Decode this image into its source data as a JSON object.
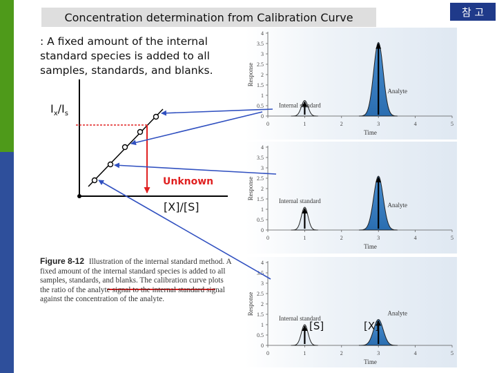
{
  "title": "Concentration determination from Calibration Curve",
  "badge": "참 고",
  "description": ": A fixed amount of the internal standard species is added to all samples, standards, and blanks.",
  "calibration": {
    "ylabel_main": "I",
    "ylabel_sub1": "x",
    "ylabel_mid": "/I",
    "ylabel_sub2": "s",
    "unknown_label": "Unknown",
    "xlabel": "[X]/[S]"
  },
  "chromatogram": {
    "ylabel": "Response",
    "xlabel": "Time",
    "y_ticks": [
      "4",
      "3.5",
      "3",
      "2.5",
      "2",
      "1.5",
      "1",
      "0.5",
      "0"
    ],
    "x_ticks": [
      "0",
      "1",
      "2",
      "3",
      "4",
      "5"
    ],
    "internal_standard_label": "Internal standard",
    "analyte_label": "Analyte",
    "s_marker": "[S]",
    "x_marker": "[X]"
  },
  "figure_caption": {
    "number": "Figure 8-12",
    "text": "Illustration of the internal standard method. A fixed amount of the internal standard species is added to all samples, standards, and blanks. The calibration curve plots the ratio of the analyte signal to the internal standard signal against the concentration of the analyte."
  },
  "colors": {
    "arrow_blue": "#3050c0",
    "arrow_red": "#e02020",
    "peak_fill": "#3a7fc4",
    "panel_bg": "#e6eef6"
  }
}
